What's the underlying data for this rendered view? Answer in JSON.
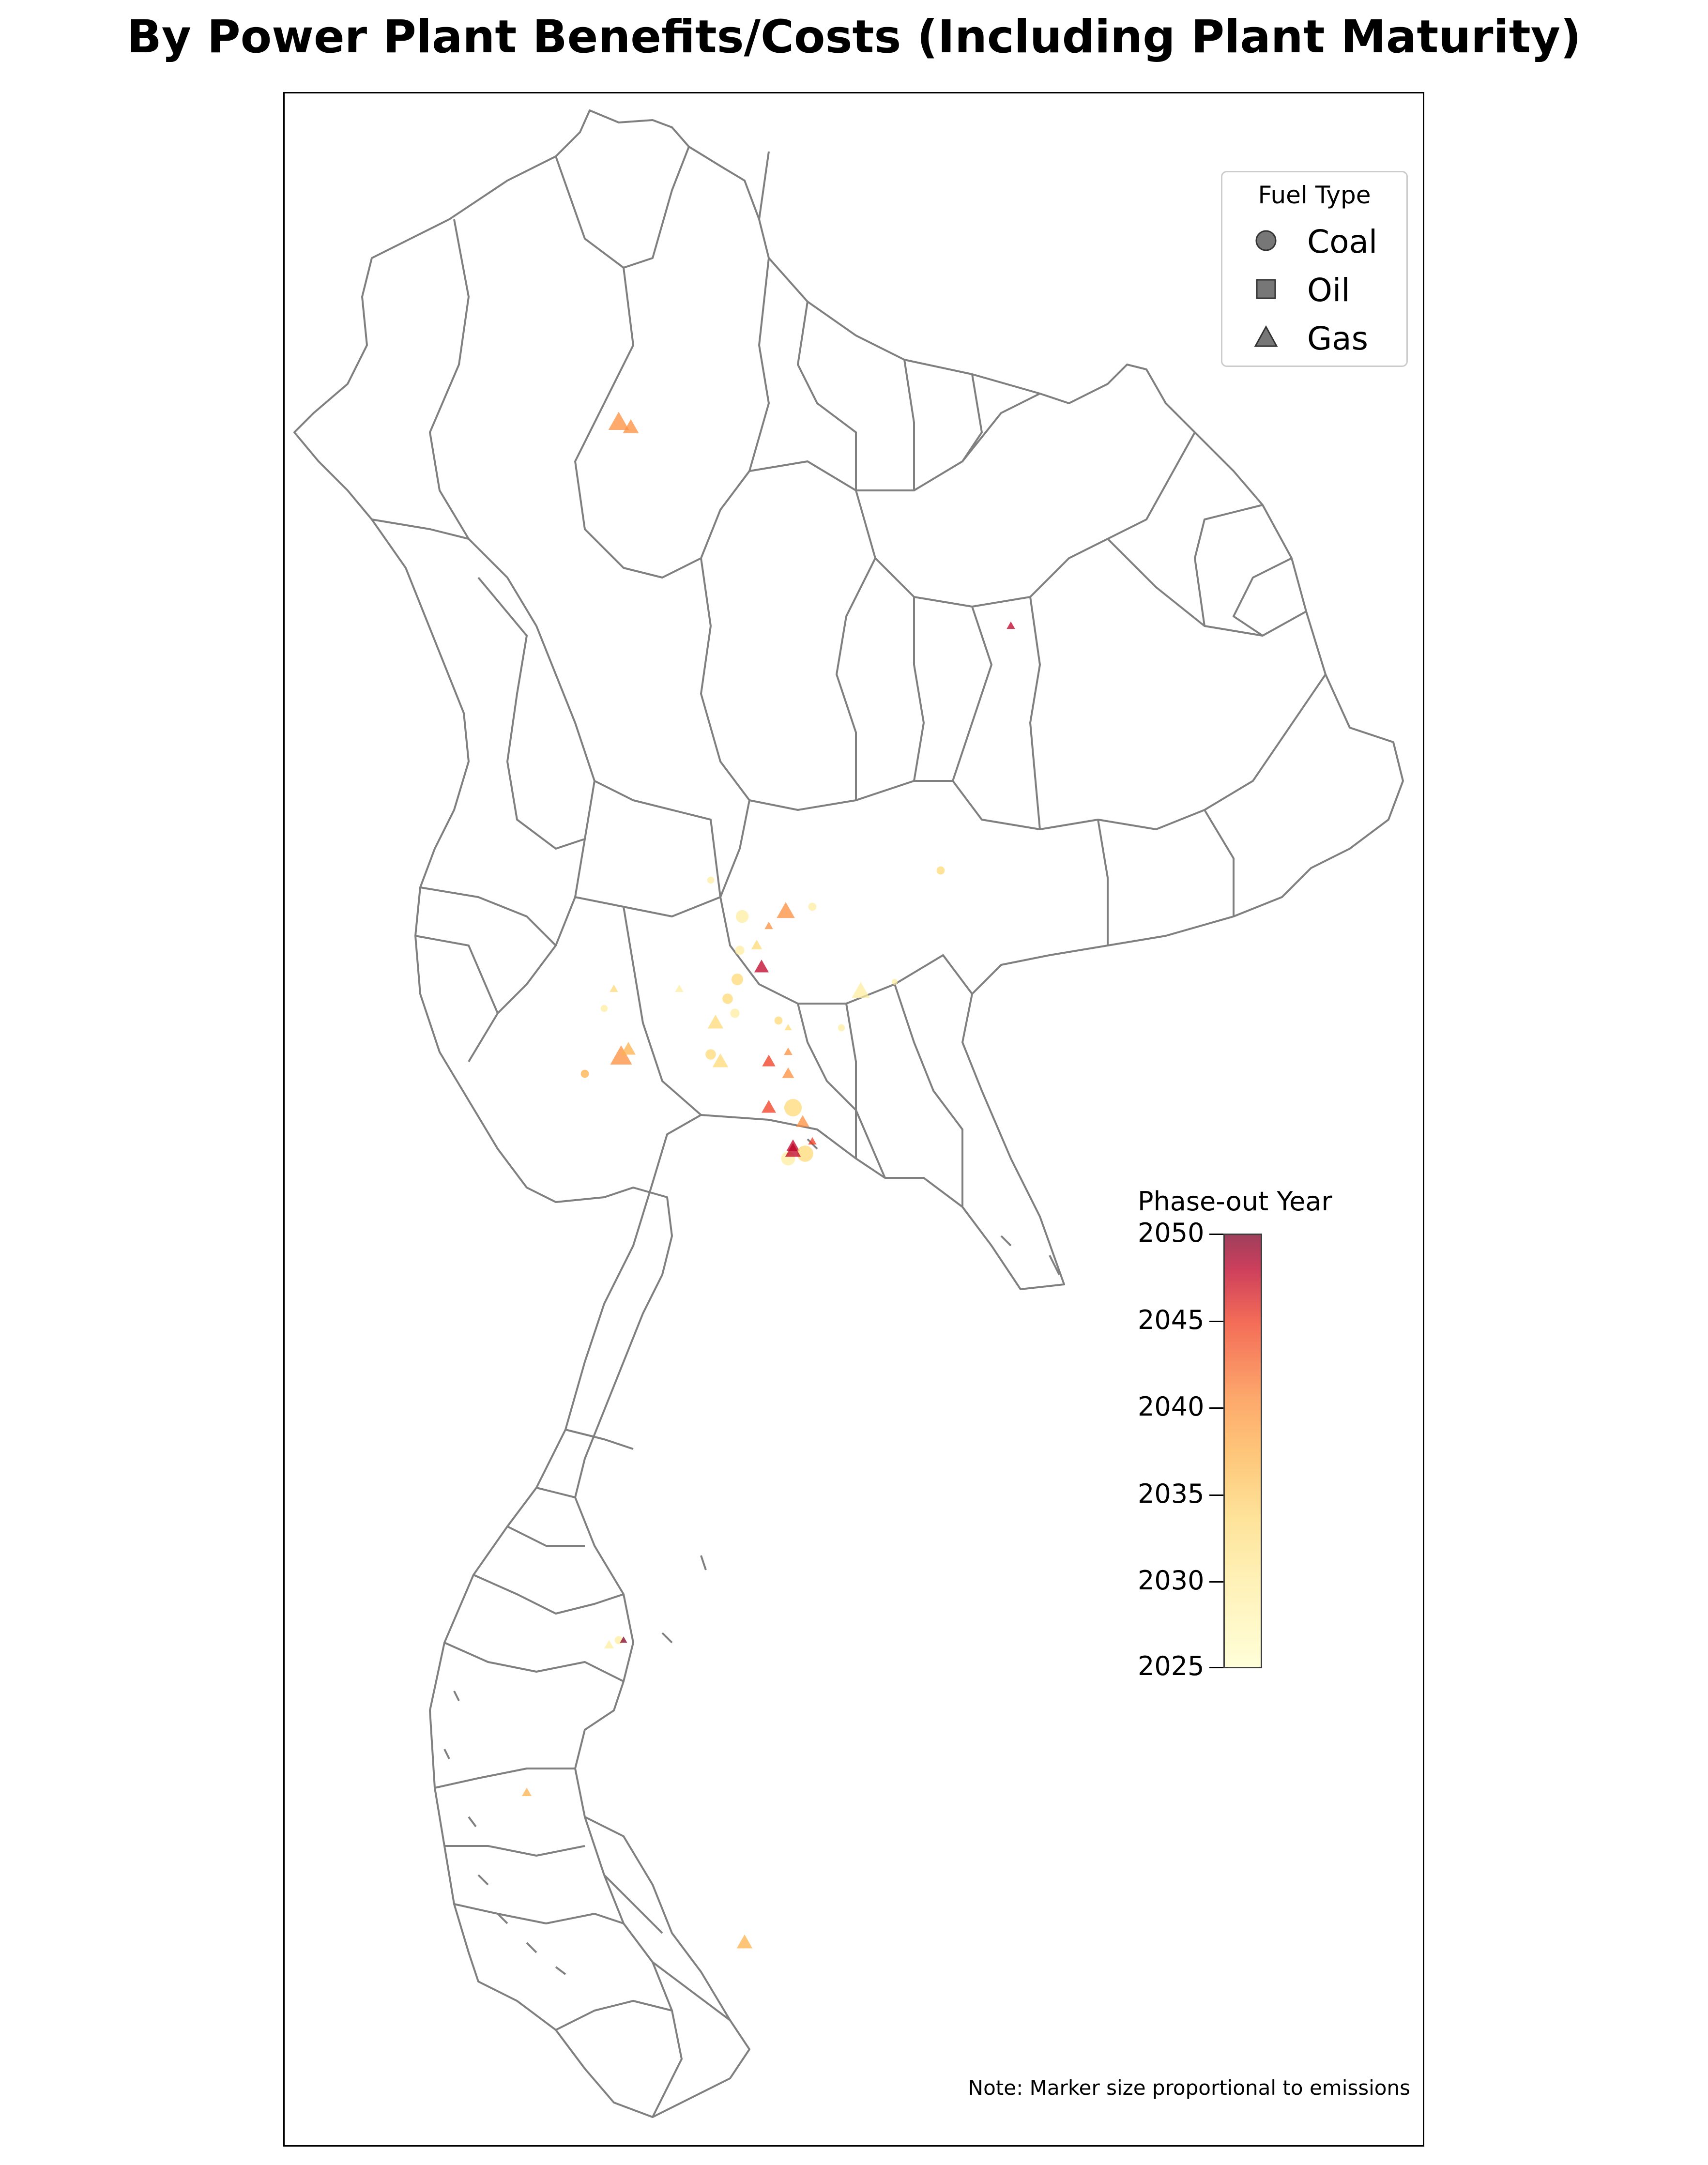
{
  "title": "By Power Plant Benefits/Costs (Including Plant Maturity)",
  "legend": {
    "title": "Fuel Type",
    "items": [
      {
        "label": "Coal",
        "icon": "circle-icon"
      },
      {
        "label": "Oil",
        "icon": "square-icon"
      },
      {
        "label": "Gas",
        "icon": "triangle-icon"
      }
    ]
  },
  "colorbar": {
    "title": "Phase-out Year",
    "ticks": [
      "2050",
      "2045",
      "2040",
      "2035",
      "2030",
      "2025"
    ],
    "min": 2025,
    "max": 2050,
    "colors": [
      "#ffffcc",
      "#ffeda0",
      "#fed976",
      "#feb24c",
      "#fd8d3c",
      "#f03b20",
      "#bd0026",
      "#800026"
    ]
  },
  "note": "Note: Marker size proportional to emissions",
  "colors": {
    "boundary": "#808080",
    "frame": "#000000"
  }
}
